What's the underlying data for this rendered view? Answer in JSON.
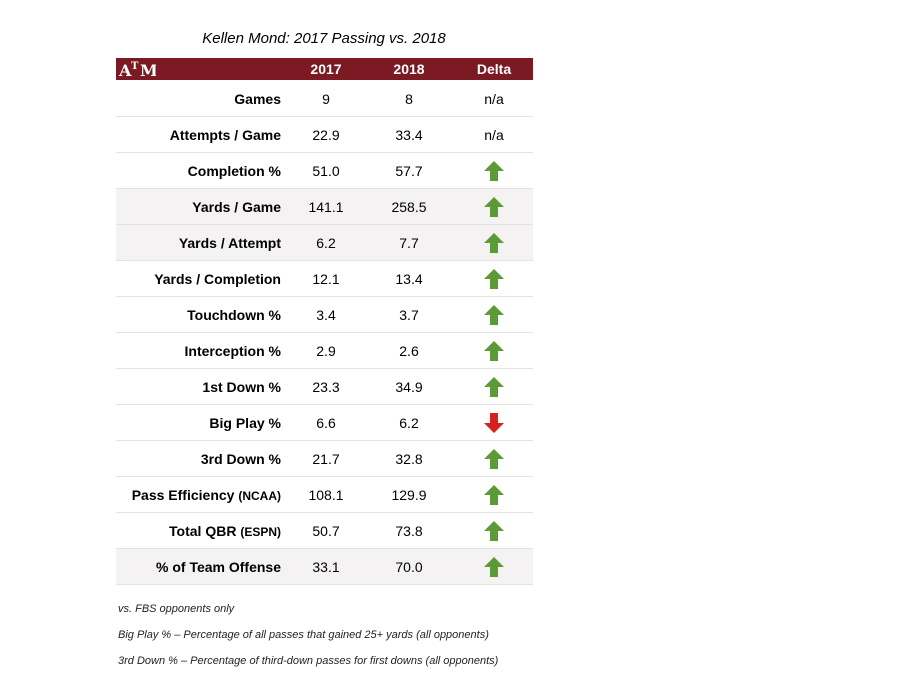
{
  "title": "Kellen Mond: 2017 Passing vs. 2018",
  "logo_text": "ATM",
  "header": {
    "col1": "2017",
    "col2": "2018",
    "col3": "Delta"
  },
  "colors": {
    "header_bg": "#7b1a23",
    "up": "#5c9a35",
    "down": "#d62020",
    "shade": "#f4f2f2"
  },
  "rows": [
    {
      "label": "Games",
      "sub": "",
      "v2017": "9",
      "v2018": "8",
      "delta": "n/a",
      "shaded": false
    },
    {
      "label": "Attempts / Game",
      "sub": "",
      "v2017": "22.9",
      "v2018": "33.4",
      "delta": "n/a",
      "shaded": false
    },
    {
      "label": "Completion %",
      "sub": "",
      "v2017": "51.0",
      "v2018": "57.7",
      "delta": "up",
      "shaded": false
    },
    {
      "label": "Yards / Game",
      "sub": "",
      "v2017": "141.1",
      "v2018": "258.5",
      "delta": "up",
      "shaded": true
    },
    {
      "label": "Yards / Attempt",
      "sub": "",
      "v2017": "6.2",
      "v2018": "7.7",
      "delta": "up",
      "shaded": true
    },
    {
      "label": "Yards / Completion",
      "sub": "",
      "v2017": "12.1",
      "v2018": "13.4",
      "delta": "up",
      "shaded": false
    },
    {
      "label": "Touchdown %",
      "sub": "",
      "v2017": "3.4",
      "v2018": "3.7",
      "delta": "up",
      "shaded": false
    },
    {
      "label": "Interception %",
      "sub": "",
      "v2017": "2.9",
      "v2018": "2.6",
      "delta": "up",
      "shaded": false
    },
    {
      "label": "1st Down %",
      "sub": "",
      "v2017": "23.3",
      "v2018": "34.9",
      "delta": "up",
      "shaded": false
    },
    {
      "label": "Big Play %",
      "sub": "",
      "v2017": "6.6",
      "v2018": "6.2",
      "delta": "down",
      "shaded": false
    },
    {
      "label": "3rd Down %",
      "sub": "",
      "v2017": "21.7",
      "v2018": "32.8",
      "delta": "up",
      "shaded": false
    },
    {
      "label": "Pass Efficiency",
      "sub": "(NCAA)",
      "v2017": "108.1",
      "v2018": "129.9",
      "delta": "up",
      "shaded": false
    },
    {
      "label": "Total QBR",
      "sub": "(ESPN)",
      "v2017": "50.7",
      "v2018": "73.8",
      "delta": "up",
      "shaded": false
    },
    {
      "label": "% of Team Offense",
      "sub": "",
      "v2017": "33.1",
      "v2018": "70.0",
      "delta": "up",
      "shaded": true
    }
  ],
  "notes": [
    "vs. FBS opponents only",
    "Big Play % – Percentage of all passes that gained 25+ yards (all opponents)",
    "3rd Down % – Percentage of third-down passes for first downs (all opponents)"
  ]
}
